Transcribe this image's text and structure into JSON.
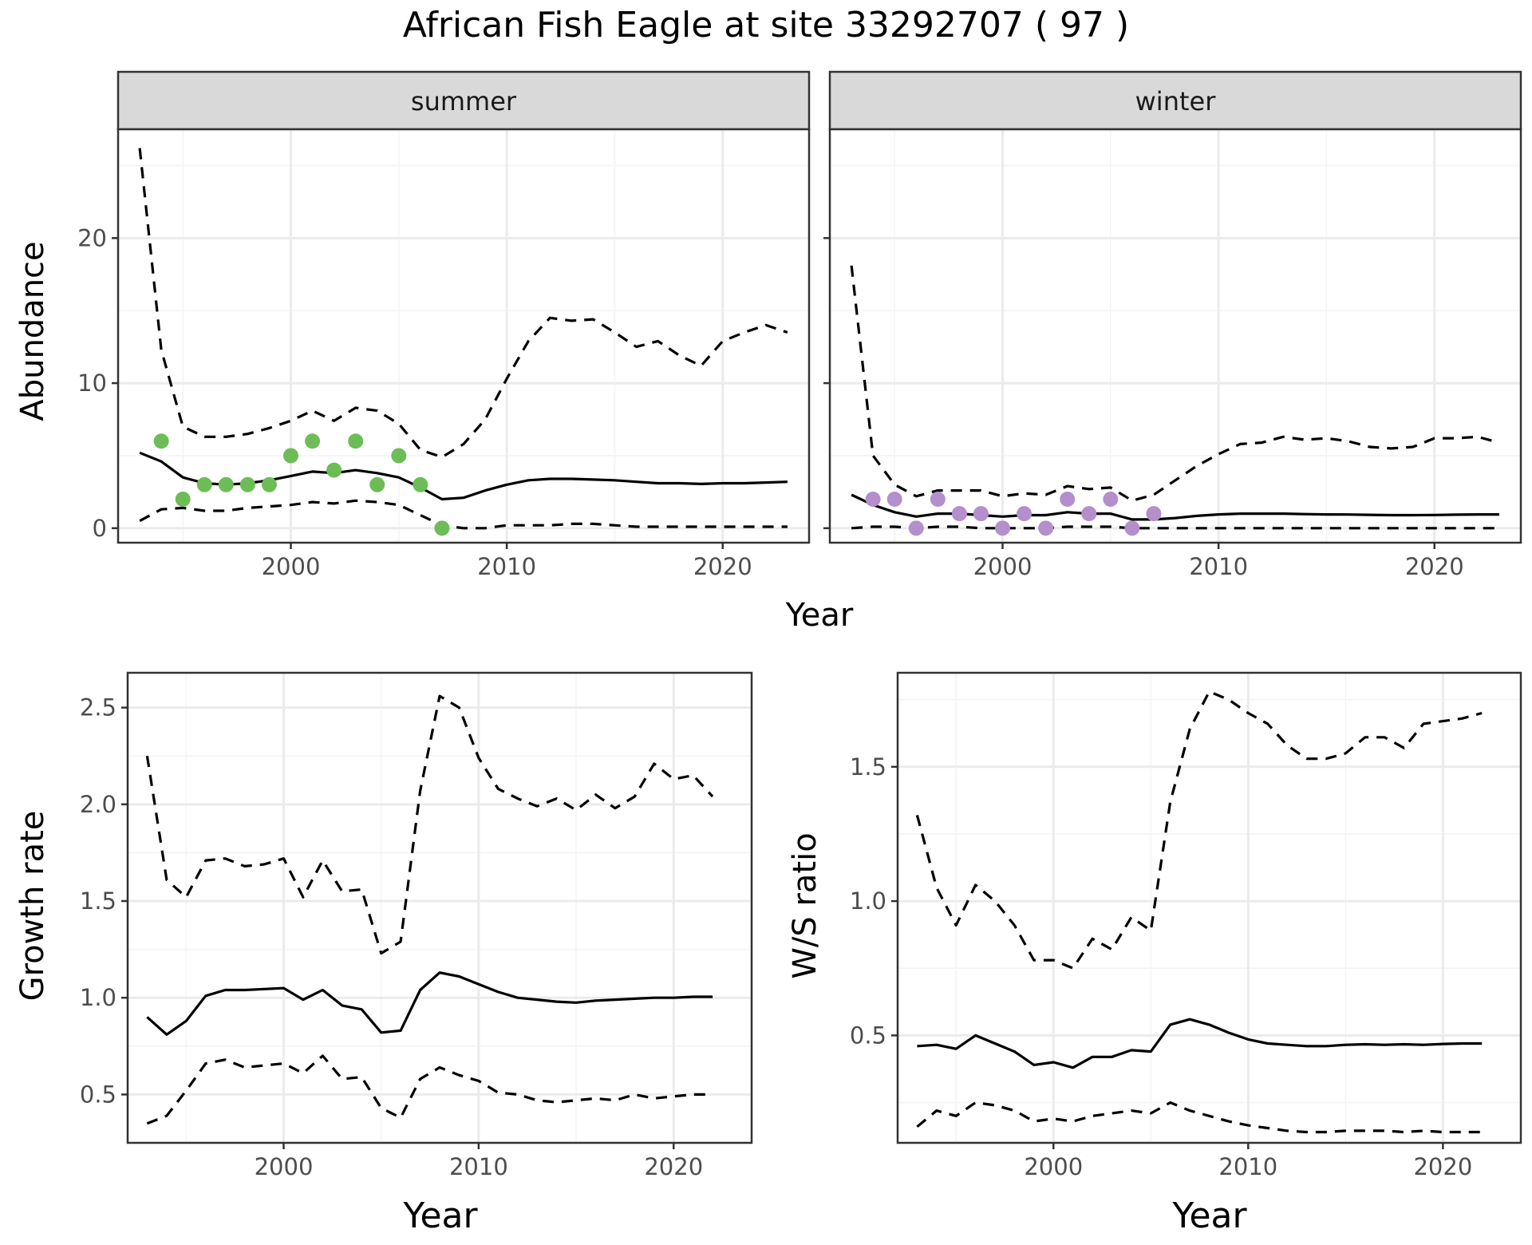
{
  "title": "African Fish Eagle at site 33292707 ( 97 )",
  "colors": {
    "summer_points": "#6dbd57",
    "winter_points": "#b48fcb",
    "line": "#000000",
    "strip_bg": "#d9d9d9",
    "grid_major": "#ebebeb",
    "grid_minor": "#f4f4f4",
    "axis_text": "#4d4d4d"
  },
  "chart_data": [
    {
      "type": "line",
      "facet": "summer",
      "strip_label": "summer",
      "xlabel": "Year",
      "ylabel": "Abundance",
      "xlim": [
        1992,
        2024
      ],
      "ylim": [
        -1,
        27.5
      ],
      "x_ticks": [
        2000,
        2010,
        2020
      ],
      "y_ticks": [
        0,
        10,
        20
      ],
      "grid": true,
      "x": [
        1993,
        1994,
        1995,
        1996,
        1997,
        1998,
        1999,
        2000,
        2001,
        2002,
        2003,
        2004,
        2005,
        2006,
        2007,
        2008,
        2009,
        2010,
        2011,
        2012,
        2013,
        2014,
        2015,
        2016,
        2017,
        2018,
        2019,
        2020,
        2021,
        2022,
        2023
      ],
      "series": [
        {
          "role": "upper",
          "style": "dashed",
          "values": [
            26.2,
            12.3,
            7.0,
            6.3,
            6.3,
            6.5,
            6.9,
            7.4,
            8.1,
            7.4,
            8.3,
            8.1,
            7.2,
            5.4,
            4.9,
            5.8,
            7.5,
            10.3,
            12.9,
            14.5,
            14.3,
            14.4,
            13.5,
            12.5,
            12.9,
            11.9,
            11.2,
            12.9,
            13.5,
            14.0,
            13.5
          ]
        },
        {
          "role": "mean",
          "style": "solid",
          "values": [
            5.2,
            4.6,
            3.5,
            3.1,
            3.0,
            3.1,
            3.3,
            3.6,
            3.9,
            3.8,
            4.0,
            3.8,
            3.5,
            2.8,
            2.0,
            2.1,
            2.6,
            3.0,
            3.3,
            3.4,
            3.4,
            3.35,
            3.3,
            3.2,
            3.1,
            3.1,
            3.05,
            3.1,
            3.1,
            3.15,
            3.2
          ]
        },
        {
          "role": "lower",
          "style": "dashed",
          "values": [
            0.5,
            1.3,
            1.4,
            1.2,
            1.2,
            1.4,
            1.5,
            1.6,
            1.8,
            1.7,
            1.9,
            1.8,
            1.6,
            0.9,
            0.2,
            0.0,
            0.0,
            0.2,
            0.2,
            0.2,
            0.3,
            0.3,
            0.2,
            0.1,
            0.1,
            0.1,
            0.1,
            0.1,
            0.1,
            0.1,
            0.1
          ]
        }
      ],
      "points": {
        "x": [
          1994,
          1995,
          1996,
          1997,
          1998,
          1999,
          2000,
          2001,
          2002,
          2003,
          2004,
          2005,
          2006,
          2007
        ],
        "y": [
          6,
          2,
          3,
          3,
          3,
          3,
          5,
          6,
          4,
          6,
          3,
          5,
          3,
          0
        ]
      }
    },
    {
      "type": "line",
      "facet": "winter",
      "strip_label": "winter",
      "xlabel": "Year",
      "ylim": [
        -1,
        27.5
      ],
      "xlim": [
        1992,
        2024
      ],
      "x_ticks": [
        2000,
        2010,
        2020
      ],
      "grid": true,
      "x": [
        1993,
        1994,
        1995,
        1996,
        1997,
        1998,
        1999,
        2000,
        2001,
        2002,
        2003,
        2004,
        2005,
        2006,
        2007,
        2008,
        2009,
        2010,
        2011,
        2012,
        2013,
        2014,
        2015,
        2016,
        2017,
        2018,
        2019,
        2020,
        2021,
        2022,
        2023
      ],
      "series": [
        {
          "role": "upper",
          "style": "dashed",
          "values": [
            18.1,
            5.0,
            3.0,
            2.2,
            2.6,
            2.6,
            2.6,
            2.2,
            2.4,
            2.3,
            2.9,
            2.7,
            2.8,
            1.9,
            2.3,
            3.3,
            4.3,
            5.1,
            5.8,
            5.9,
            6.3,
            6.1,
            6.2,
            6.0,
            5.6,
            5.5,
            5.6,
            6.2,
            6.2,
            6.3,
            5.9
          ]
        },
        {
          "role": "mean",
          "style": "solid",
          "values": [
            2.3,
            1.6,
            1.1,
            0.8,
            1.0,
            1.0,
            0.9,
            0.8,
            0.9,
            0.9,
            1.1,
            1.0,
            1.0,
            0.6,
            0.6,
            0.7,
            0.85,
            0.95,
            1.0,
            1.0,
            1.0,
            0.97,
            0.95,
            0.94,
            0.92,
            0.9,
            0.9,
            0.91,
            0.93,
            0.95,
            0.95
          ]
        },
        {
          "role": "lower",
          "style": "dashed",
          "values": [
            0.0,
            0.1,
            0.1,
            0.0,
            0.1,
            0.1,
            0.0,
            0.0,
            0.0,
            0.0,
            0.1,
            0.1,
            0.1,
            0.0,
            0.0,
            0.0,
            0.0,
            0.0,
            0.0,
            0.0,
            0.0,
            0.0,
            0.0,
            0.0,
            0.0,
            0.0,
            0.0,
            0.0,
            0.0,
            0.0,
            0.0
          ]
        }
      ],
      "points": {
        "x": [
          1994,
          1995,
          1996,
          1997,
          1998,
          1999,
          2000,
          2001,
          2002,
          2003,
          2004,
          2005,
          2006,
          2007
        ],
        "y": [
          2,
          2,
          0,
          2,
          1,
          1,
          0,
          1,
          0,
          2,
          1,
          2,
          0,
          1
        ]
      }
    },
    {
      "type": "line",
      "xlabel": "Year",
      "ylabel": "Growth rate",
      "xlim": [
        1992,
        2024
      ],
      "ylim": [
        0.25,
        2.68
      ],
      "x_ticks": [
        2000,
        2010,
        2020
      ],
      "y_ticks": [
        0.5,
        1.0,
        1.5,
        2.0,
        2.5
      ],
      "y_tick_labels": [
        "0.5",
        "1.0",
        "1.5",
        "2.0",
        "2.5"
      ],
      "grid": true,
      "x": [
        1993,
        1994,
        1995,
        1996,
        1997,
        1998,
        1999,
        2000,
        2001,
        2002,
        2003,
        2004,
        2005,
        2006,
        2007,
        2008,
        2009,
        2010,
        2011,
        2012,
        2013,
        2014,
        2015,
        2016,
        2017,
        2018,
        2019,
        2020,
        2021,
        2022
      ],
      "series": [
        {
          "role": "upper",
          "style": "dashed",
          "values": [
            2.25,
            1.61,
            1.52,
            1.71,
            1.72,
            1.68,
            1.69,
            1.72,
            1.52,
            1.71,
            1.55,
            1.56,
            1.23,
            1.29,
            2.07,
            2.56,
            2.5,
            2.24,
            2.08,
            2.03,
            1.99,
            2.03,
            1.97,
            2.05,
            1.98,
            2.04,
            2.21,
            2.13,
            2.15,
            2.04
          ]
        },
        {
          "role": "mean",
          "style": "solid",
          "values": [
            0.9,
            0.81,
            0.88,
            1.01,
            1.04,
            1.04,
            1.045,
            1.05,
            0.99,
            1.04,
            0.96,
            0.94,
            0.82,
            0.83,
            1.04,
            1.13,
            1.11,
            1.07,
            1.03,
            1.0,
            0.99,
            0.98,
            0.975,
            0.985,
            0.99,
            0.995,
            1.0,
            1.0,
            1.005,
            1.005
          ]
        },
        {
          "role": "lower",
          "style": "dashed",
          "values": [
            0.35,
            0.39,
            0.52,
            0.66,
            0.68,
            0.64,
            0.65,
            0.66,
            0.61,
            0.7,
            0.58,
            0.59,
            0.43,
            0.38,
            0.58,
            0.64,
            0.6,
            0.57,
            0.51,
            0.5,
            0.47,
            0.46,
            0.47,
            0.48,
            0.47,
            0.5,
            0.48,
            0.49,
            0.5,
            0.5
          ]
        }
      ]
    },
    {
      "type": "line",
      "xlabel": "Year",
      "ylabel": "W/S ratio",
      "xlim": [
        1992,
        2024
      ],
      "ylim": [
        0.1,
        1.85
      ],
      "x_ticks": [
        2000,
        2010,
        2020
      ],
      "y_ticks": [
        0.5,
        1.0,
        1.5
      ],
      "y_tick_labels": [
        "0.5",
        "1.0",
        "1.5"
      ],
      "grid": true,
      "x": [
        1993,
        1994,
        1995,
        1996,
        1997,
        1998,
        1999,
        2000,
        2001,
        2002,
        2003,
        2004,
        2005,
        2006,
        2007,
        2008,
        2009,
        2010,
        2011,
        2012,
        2013,
        2014,
        2015,
        2016,
        2017,
        2018,
        2019,
        2020,
        2021,
        2022
      ],
      "series": [
        {
          "role": "upper",
          "style": "dashed",
          "values": [
            1.32,
            1.05,
            0.91,
            1.06,
            1.0,
            0.91,
            0.78,
            0.78,
            0.75,
            0.86,
            0.82,
            0.94,
            0.89,
            1.37,
            1.64,
            1.78,
            1.75,
            1.7,
            1.66,
            1.58,
            1.53,
            1.53,
            1.55,
            1.61,
            1.61,
            1.57,
            1.66,
            1.67,
            1.68,
            1.7
          ]
        },
        {
          "role": "mean",
          "style": "solid",
          "values": [
            0.46,
            0.465,
            0.45,
            0.5,
            0.47,
            0.44,
            0.39,
            0.4,
            0.38,
            0.42,
            0.42,
            0.445,
            0.44,
            0.54,
            0.56,
            0.54,
            0.51,
            0.485,
            0.47,
            0.465,
            0.46,
            0.46,
            0.465,
            0.467,
            0.465,
            0.467,
            0.465,
            0.468,
            0.47,
            0.47
          ]
        },
        {
          "role": "lower",
          "style": "dashed",
          "values": [
            0.16,
            0.22,
            0.2,
            0.25,
            0.24,
            0.22,
            0.18,
            0.19,
            0.18,
            0.2,
            0.21,
            0.22,
            0.21,
            0.25,
            0.22,
            0.2,
            0.18,
            0.165,
            0.155,
            0.145,
            0.14,
            0.14,
            0.145,
            0.145,
            0.145,
            0.14,
            0.145,
            0.14,
            0.14,
            0.14
          ]
        }
      ]
    }
  ]
}
